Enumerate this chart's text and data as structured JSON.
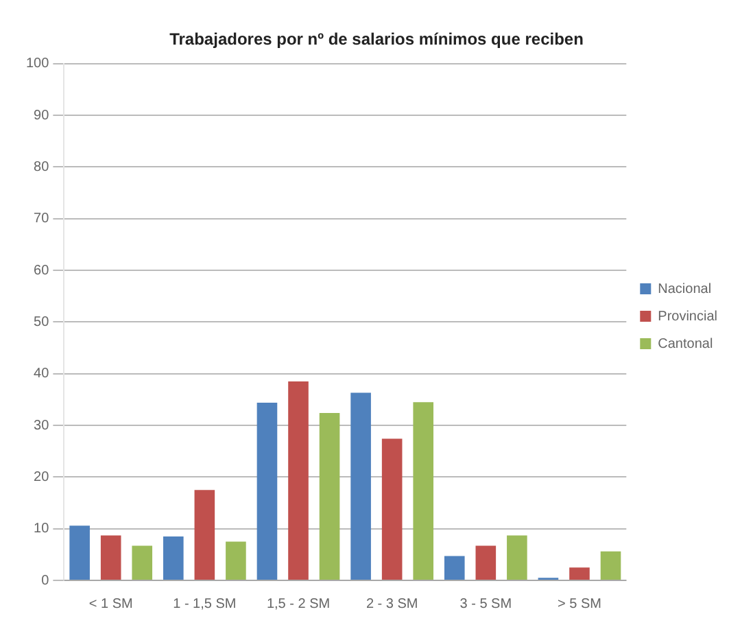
{
  "chart_data": {
    "type": "bar",
    "title": "Trabajadores por nº de salarios mínimos que reciben",
    "categories": [
      "< 1 SM",
      "1 - 1,5 SM",
      "1,5 - 2 SM",
      "2 - 3 SM",
      "3 - 5 SM",
      "> 5 SM"
    ],
    "series": [
      {
        "name": "Nacional",
        "color": "#4f81bd",
        "values": [
          10.6,
          8.5,
          34.4,
          36.3,
          4.7,
          0.5
        ]
      },
      {
        "name": "Provincial",
        "color": "#c0504d",
        "values": [
          8.7,
          17.5,
          38.5,
          27.4,
          6.7,
          2.5
        ]
      },
      {
        "name": "Cantonal",
        "color": "#9bbb59",
        "values": [
          6.7,
          7.5,
          32.4,
          34.5,
          8.7,
          5.6
        ]
      }
    ],
    "ylim": [
      0,
      100
    ],
    "yticks": [
      0,
      10,
      20,
      30,
      40,
      50,
      60,
      70,
      80,
      90,
      100
    ],
    "grid": "y",
    "legend": "right"
  }
}
